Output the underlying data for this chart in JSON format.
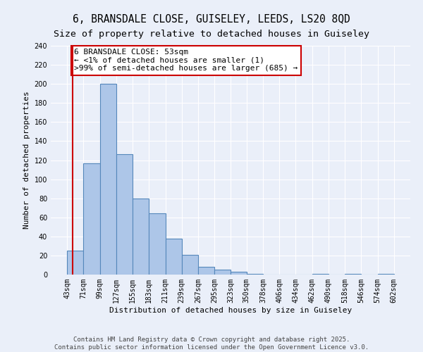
{
  "title1": "6, BRANSDALE CLOSE, GUISELEY, LEEDS, LS20 8QD",
  "title2": "Size of property relative to detached houses in Guiseley",
  "xlabel": "Distribution of detached houses by size in Guiseley",
  "ylabel": "Number of detached properties",
  "bar_edges": [
    43,
    71,
    99,
    127,
    155,
    183,
    211,
    239,
    267,
    295,
    323,
    350,
    378,
    406,
    434,
    462,
    490,
    518,
    546,
    574,
    602
  ],
  "bar_heights": [
    25,
    117,
    200,
    126,
    80,
    64,
    38,
    21,
    8,
    5,
    3,
    1,
    0,
    0,
    0,
    1,
    0,
    1,
    0,
    1
  ],
  "bar_color": "#adc6e8",
  "bar_edge_color": "#5588bb",
  "property_size": 53,
  "red_line_color": "#cc0000",
  "annotation_text": "6 BRANSDALE CLOSE: 53sqm\n← <1% of detached houses are smaller (1)\n>99% of semi-detached houses are larger (685) →",
  "annotation_box_color": "#ffffff",
  "annotation_box_edge_color": "#cc0000",
  "ylim": [
    0,
    240
  ],
  "yticks": [
    0,
    20,
    40,
    60,
    80,
    100,
    120,
    140,
    160,
    180,
    200,
    220,
    240
  ],
  "background_color": "#eaeff9",
  "grid_color": "#ffffff",
  "footer_text": "Contains HM Land Registry data © Crown copyright and database right 2025.\nContains public sector information licensed under the Open Government Licence v3.0.",
  "title_fontsize": 10.5,
  "subtitle_fontsize": 9.5,
  "axis_label_fontsize": 8,
  "tick_fontsize": 7,
  "annotation_fontsize": 8,
  "footer_fontsize": 6.5
}
